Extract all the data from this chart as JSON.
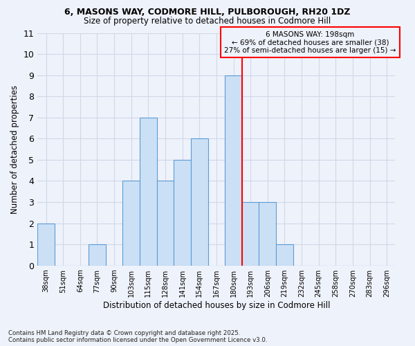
{
  "title1": "6, MASONS WAY, CODMORE HILL, PULBOROUGH, RH20 1DZ",
  "title2": "Size of property relative to detached houses in Codmore Hill",
  "xlabel": "Distribution of detached houses by size in Codmore Hill",
  "ylabel": "Number of detached properties",
  "bins": [
    "38sqm",
    "51sqm",
    "64sqm",
    "77sqm",
    "90sqm",
    "103sqm",
    "115sqm",
    "128sqm",
    "141sqm",
    "154sqm",
    "167sqm",
    "180sqm",
    "193sqm",
    "206sqm",
    "219sqm",
    "232sqm",
    "245sqm",
    "258sqm",
    "270sqm",
    "283sqm",
    "296sqm"
  ],
  "values": [
    2,
    0,
    0,
    1,
    0,
    4,
    7,
    4,
    5,
    6,
    0,
    9,
    3,
    3,
    1,
    0,
    0,
    0,
    0,
    0,
    0
  ],
  "bar_color": "#cce0f5",
  "bar_edge_color": "#5b9bd5",
  "grid_color": "#d0d8e8",
  "bg_color": "#eef2fa",
  "vline_index": 11,
  "vline_color": "red",
  "annotation_text": "6 MASONS WAY: 198sqm\n← 69% of detached houses are smaller (38)\n27% of semi-detached houses are larger (15) →",
  "ylim": [
    0,
    11
  ],
  "yticks": [
    0,
    1,
    2,
    3,
    4,
    5,
    6,
    7,
    8,
    9,
    10,
    11
  ],
  "footnote": "Contains HM Land Registry data © Crown copyright and database right 2025.\nContains public sector information licensed under the Open Government Licence v3.0."
}
